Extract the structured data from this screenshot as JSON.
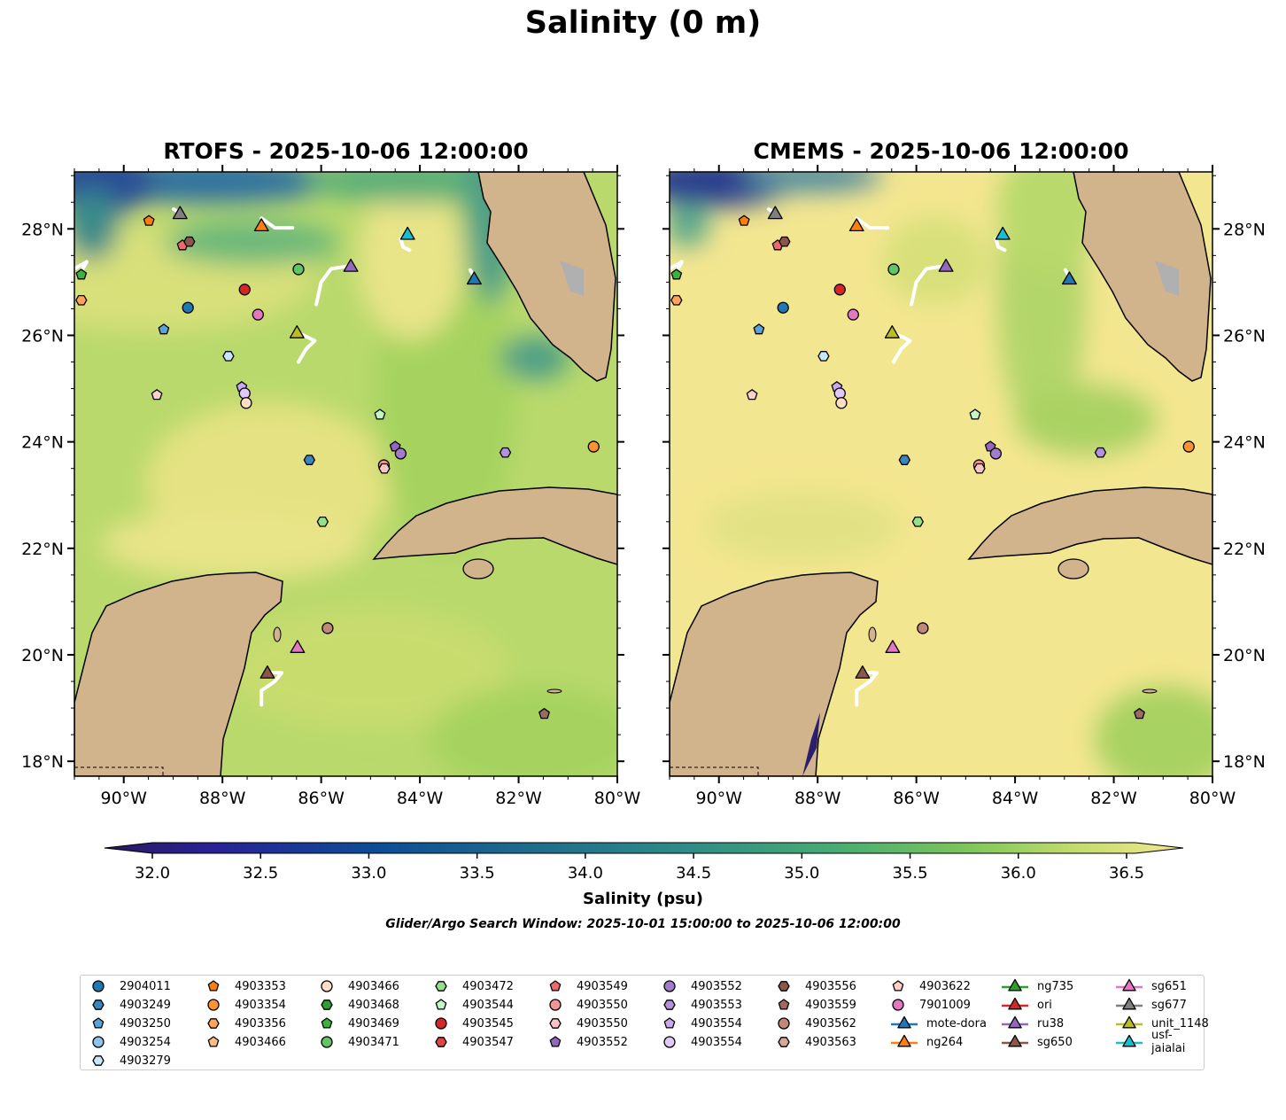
{
  "title": "Salinity (0 m)",
  "maps": [
    {
      "title": "RTOFS - 2025-10-06 12:00:00",
      "variant": "rtofs"
    },
    {
      "title": "CMEMS - 2025-10-06 12:00:00",
      "variant": "cmems"
    }
  ],
  "axes": {
    "lon_ticks": [
      {
        "lon": -90,
        "label": "90°W"
      },
      {
        "lon": -88,
        "label": "88°W"
      },
      {
        "lon": -86,
        "label": "86°W"
      },
      {
        "lon": -84,
        "label": "84°W"
      },
      {
        "lon": -82,
        "label": "82°W"
      },
      {
        "lon": -80,
        "label": "80°W"
      }
    ],
    "lat_ticks": [
      {
        "lat": 18,
        "label": "18°N"
      },
      {
        "lat": 20,
        "label": "20°N"
      },
      {
        "lat": 22,
        "label": "22°N"
      },
      {
        "lat": 24,
        "label": "24°N"
      },
      {
        "lat": 26,
        "label": "26°N"
      },
      {
        "lat": 28,
        "label": "28°N"
      }
    ],
    "lon_range": [
      -91,
      -80
    ],
    "lat_range": [
      17.72,
      29.07
    ]
  },
  "colorbar": {
    "label": "Salinity (psu)",
    "range": [
      32.0,
      36.5
    ],
    "ticks": [
      "32.0",
      "32.5",
      "33.0",
      "33.5",
      "34.0",
      "34.5",
      "35.0",
      "35.5",
      "36.0",
      "36.5"
    ],
    "extend": "both"
  },
  "search_window": "Glider/Argo Search Window: 2025-10-01 15:00:00 to 2025-10-06 12:00:00",
  "legend": [
    {
      "label": "2904011",
      "shape": "circle",
      "color": "#1f77b4"
    },
    {
      "label": "4903249",
      "shape": "hex",
      "color": "#3a86c0"
    },
    {
      "label": "4903250",
      "shape": "pent",
      "color": "#5aa3d6"
    },
    {
      "label": "4903254",
      "shape": "circle",
      "color": "#8cc4ec"
    },
    {
      "label": "4903279",
      "shape": "hex",
      "color": "#c6e6fb"
    },
    {
      "label": "4903353",
      "shape": "pent",
      "color": "#ff7f0e"
    },
    {
      "label": "4903354",
      "shape": "circle",
      "color": "#ff9333"
    },
    {
      "label": "4903356",
      "shape": "hex",
      "color": "#ffa45a"
    },
    {
      "label": "4903466",
      "shape": "pent",
      "color": "#ffbb80"
    },
    {
      "label": "4903466",
      "shape": "circle",
      "color": "#ffdfc4"
    },
    {
      "label": "4903468",
      "shape": "hex",
      "color": "#2ca02c"
    },
    {
      "label": "4903469",
      "shape": "pent",
      "color": "#3cb23c"
    },
    {
      "label": "4903471",
      "shape": "circle",
      "color": "#62c462"
    },
    {
      "label": "4903472",
      "shape": "hex",
      "color": "#98df8a"
    },
    {
      "label": "4903544",
      "shape": "pent",
      "color": "#c4f5c4"
    },
    {
      "label": "4903545",
      "shape": "circle",
      "color": "#d62728"
    },
    {
      "label": "4903547",
      "shape": "hex",
      "color": "#e04545"
    },
    {
      "label": "4903549",
      "shape": "pent",
      "color": "#ec6a6a"
    },
    {
      "label": "4903550",
      "shape": "circle",
      "color": "#f49494"
    },
    {
      "label": "4903550",
      "shape": "hex",
      "color": "#fbc4c4"
    },
    {
      "label": "4903552",
      "shape": "pent",
      "color": "#9467bd"
    },
    {
      "label": "4903552",
      "shape": "circle",
      "color": "#a27cca"
    },
    {
      "label": "4903553",
      "shape": "hex",
      "color": "#b590dc"
    },
    {
      "label": "4903554",
      "shape": "pent",
      "color": "#cba8ec"
    },
    {
      "label": "4903554",
      "shape": "circle",
      "color": "#e2c8f8"
    },
    {
      "label": "4903556",
      "shape": "hex",
      "color": "#8c564b"
    },
    {
      "label": "4903559",
      "shape": "pent",
      "color": "#a0695e"
    },
    {
      "label": "4903562",
      "shape": "circle",
      "color": "#c08878"
    },
    {
      "label": "4903563",
      "shape": "hex",
      "color": "#d8a898"
    },
    {
      "label": "4903622",
      "shape": "pent",
      "color": "#fdd0c8"
    },
    {
      "label": "7901009",
      "shape": "circle",
      "color": "#e377c2"
    },
    {
      "label": "mote-dora",
      "shape": "tri",
      "color": "#1f77b4"
    },
    {
      "label": "ng264",
      "shape": "tri",
      "color": "#ff7f0e"
    },
    {
      "label": "ng735",
      "shape": "tri",
      "color": "#2ca02c"
    },
    {
      "label": "ori",
      "shape": "tri",
      "color": "#d62728"
    },
    {
      "label": "ru38",
      "shape": "tri",
      "color": "#9467bd"
    },
    {
      "label": "sg650",
      "shape": "tri",
      "color": "#8c564b"
    },
    {
      "label": "sg651",
      "shape": "tri",
      "color": "#e377c2"
    },
    {
      "label": "sg677",
      "shape": "tri",
      "color": "#7f7f7f"
    },
    {
      "label": "unit_1148",
      "shape": "tri",
      "color": "#bcbd22"
    },
    {
      "label": "usf-jaialai",
      "shape": "tri",
      "color": "#17becf"
    }
  ],
  "markers": [
    {
      "legend": 5,
      "lon": -89.49,
      "lat": 28.15
    },
    {
      "legend": 17,
      "lon": -88.81,
      "lat": 27.69
    },
    {
      "legend": 25,
      "lon": -88.67,
      "lat": 27.76
    },
    {
      "legend": 12,
      "lon": -86.46,
      "lat": 27.24
    },
    {
      "legend": 11,
      "lon": -90.86,
      "lat": 27.14
    },
    {
      "legend": 7,
      "lon": -90.86,
      "lat": 26.66
    },
    {
      "legend": 15,
      "lon": -87.55,
      "lat": 26.86
    },
    {
      "legend": 0,
      "lon": -88.7,
      "lat": 26.52
    },
    {
      "legend": 30,
      "lon": -87.28,
      "lat": 26.39
    },
    {
      "legend": 2,
      "lon": -89.19,
      "lat": 26.11
    },
    {
      "legend": 4,
      "lon": -87.88,
      "lat": 25.61
    },
    {
      "legend": 23,
      "lon": -87.61,
      "lat": 25.03
    },
    {
      "legend": 24,
      "lon": -87.55,
      "lat": 24.91
    },
    {
      "legend": 9,
      "lon": -87.52,
      "lat": 24.73
    },
    {
      "legend": 29,
      "lon": -89.33,
      "lat": 24.88
    },
    {
      "legend": 14,
      "lon": -84.81,
      "lat": 24.51
    },
    {
      "legend": 20,
      "lon": -84.5,
      "lat": 23.91
    },
    {
      "legend": 21,
      "lon": -84.39,
      "lat": 23.78
    },
    {
      "legend": 22,
      "lon": -82.27,
      "lat": 23.8
    },
    {
      "legend": 6,
      "lon": -80.48,
      "lat": 23.91
    },
    {
      "legend": 1,
      "lon": -86.24,
      "lat": 23.66
    },
    {
      "legend": 18,
      "lon": -84.73,
      "lat": 23.56
    },
    {
      "legend": 19,
      "lon": -84.72,
      "lat": 23.5
    },
    {
      "legend": 13,
      "lon": -85.97,
      "lat": 22.5
    },
    {
      "legend": 27,
      "lon": -85.87,
      "lat": 20.5
    },
    {
      "legend": 26,
      "lon": -81.48,
      "lat": 18.89
    },
    {
      "legend": 38,
      "lon": -88.86,
      "lat": 28.3
    },
    {
      "legend": 32,
      "lon": -87.21,
      "lat": 28.07
    },
    {
      "legend": 40,
      "lon": -84.25,
      "lat": 27.91
    },
    {
      "legend": 35,
      "lon": -85.4,
      "lat": 27.31
    },
    {
      "legend": 31,
      "lon": -82.9,
      "lat": 27.07
    },
    {
      "legend": 39,
      "lon": -86.49,
      "lat": 26.06
    },
    {
      "legend": 37,
      "lon": -86.48,
      "lat": 20.15
    },
    {
      "legend": 36,
      "lon": -87.09,
      "lat": 19.67
    }
  ],
  "tracks": [
    [
      [
        -88.99,
        28.37
      ],
      [
        -88.86,
        28.3
      ]
    ],
    [
      [
        -87.21,
        28.2
      ],
      [
        -86.94,
        28.02
      ],
      [
        -86.58,
        28.02
      ]
    ],
    [
      [
        -85.4,
        27.31
      ],
      [
        -85.8,
        27.25
      ],
      [
        -86.0,
        27.0
      ],
      [
        -86.1,
        26.58
      ]
    ],
    [
      [
        -86.49,
        26.06
      ],
      [
        -86.13,
        25.9
      ],
      [
        -86.31,
        25.74
      ],
      [
        -86.46,
        25.5
      ]
    ],
    [
      [
        -84.25,
        27.91
      ],
      [
        -84.39,
        27.82
      ],
      [
        -84.34,
        27.66
      ],
      [
        -84.21,
        27.6
      ]
    ],
    [
      [
        -82.98,
        27.23
      ],
      [
        -82.9,
        27.1
      ]
    ],
    [
      [
        -87.09,
        19.67
      ],
      [
        -86.8,
        19.66
      ],
      [
        -86.94,
        19.5
      ],
      [
        -87.21,
        19.33
      ],
      [
        -87.21,
        19.06
      ]
    ],
    [
      [
        -91.0,
        27.25
      ],
      [
        -90.75,
        27.38
      ],
      [
        -90.92,
        27.1
      ]
    ]
  ]
}
